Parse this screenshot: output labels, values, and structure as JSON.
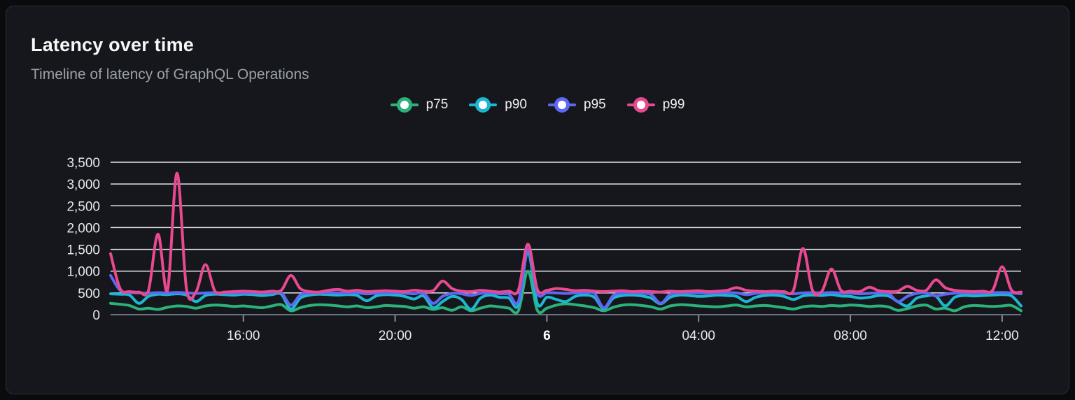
{
  "card": {
    "title": "Latency over time",
    "subtitle": "Timeline of latency of GraphQL Operations"
  },
  "colors": {
    "background": "#15171c",
    "page_background": "#0a0b0d",
    "card_border": "#2c2f36",
    "gridline": "#e3e6ea",
    "axis_line": "#878d97",
    "axis_text": "#e7e9ec"
  },
  "chart_data": {
    "type": "line",
    "title": "Latency over time",
    "subtitle": "Timeline of latency of GraphQL Operations",
    "x_axis": {
      "kind": "time",
      "start_label": "12:30",
      "step_minutes": 15,
      "points": 97,
      "ticks": [
        {
          "label": "16:00",
          "index": 14,
          "bold": false
        },
        {
          "label": "20:00",
          "index": 30,
          "bold": false
        },
        {
          "label": "6",
          "index": 46,
          "bold": true
        },
        {
          "label": "04:00",
          "index": 62,
          "bold": false
        },
        {
          "label": "08:00",
          "index": 78,
          "bold": false
        },
        {
          "label": "12:00",
          "index": 94,
          "bold": false
        }
      ]
    },
    "y_axis": {
      "min": 0,
      "max": 3500,
      "tick_step": 500,
      "tick_labels": [
        "0",
        "500",
        "1,000",
        "1,500",
        "2,000",
        "2,500",
        "3,000",
        "3,500"
      ]
    },
    "grid": "horizontal",
    "legend_position": "top-center",
    "series": [
      {
        "name": "p75",
        "color": "#2bb179",
        "values": [
          260,
          240,
          210,
          130,
          150,
          120,
          170,
          200,
          190,
          150,
          200,
          220,
          210,
          190,
          200,
          180,
          160,
          200,
          230,
          90,
          160,
          210,
          230,
          220,
          200,
          180,
          200,
          160,
          180,
          210,
          200,
          190,
          150,
          180,
          120,
          160,
          100,
          180,
          90,
          150,
          200,
          180,
          150,
          90,
          1000,
          100,
          150,
          220,
          250,
          230,
          200,
          160,
          90,
          170,
          220,
          230,
          210,
          180,
          130,
          200,
          230,
          220,
          200,
          190,
          180,
          200,
          220,
          180,
          200,
          210,
          190,
          160,
          130,
          180,
          200,
          190,
          210,
          200,
          220,
          210,
          190,
          200,
          180,
          100,
          140,
          200,
          220,
          130,
          150,
          90,
          180,
          210,
          200,
          190,
          200,
          210,
          90
        ]
      },
      {
        "name": "p90",
        "color": "#1cb8d2",
        "values": [
          480,
          470,
          450,
          260,
          420,
          470,
          460,
          480,
          450,
          300,
          440,
          470,
          460,
          450,
          470,
          460,
          440,
          460,
          470,
          130,
          380,
          450,
          470,
          460,
          450,
          460,
          440,
          320,
          430,
          460,
          450,
          420,
          360,
          430,
          160,
          300,
          420,
          350,
          120,
          380,
          450,
          400,
          380,
          220,
          1450,
          250,
          400,
          350,
          300,
          420,
          450,
          400,
          140,
          380,
          440,
          450,
          430,
          380,
          250,
          400,
          450,
          440,
          420,
          430,
          450,
          440,
          420,
          300,
          400,
          440,
          450,
          420,
          350,
          430,
          450,
          440,
          460,
          430,
          420,
          380,
          400,
          440,
          430,
          300,
          200,
          380,
          430,
          430,
          200,
          400,
          440,
          430,
          440,
          450,
          460,
          430,
          200
        ]
      },
      {
        "name": "p95",
        "color": "#5f68f2",
        "values": [
          900,
          560,
          510,
          500,
          495,
          505,
          500,
          510,
          500,
          490,
          500,
          505,
          500,
          495,
          500,
          505,
          495,
          500,
          505,
          220,
          450,
          495,
          500,
          505,
          500,
          495,
          500,
          480,
          495,
          500,
          505,
          495,
          480,
          495,
          260,
          420,
          490,
          480,
          440,
          490,
          500,
          480,
          470,
          300,
          1500,
          490,
          505,
          500,
          490,
          500,
          505,
          490,
          160,
          440,
          495,
          500,
          495,
          460,
          260,
          470,
          500,
          505,
          500,
          495,
          500,
          505,
          500,
          460,
          490,
          500,
          505,
          495,
          480,
          500,
          505,
          500,
          510,
          500,
          495,
          480,
          490,
          500,
          495,
          300,
          420,
          490,
          500,
          430,
          470,
          495,
          500,
          495,
          500,
          505,
          510,
          500,
          480
        ]
      },
      {
        "name": "p99",
        "color": "#e8498f",
        "values": [
          1400,
          600,
          530,
          520,
          560,
          1850,
          560,
          3250,
          600,
          520,
          1150,
          540,
          520,
          530,
          540,
          530,
          520,
          540,
          560,
          900,
          600,
          530,
          520,
          560,
          580,
          540,
          560,
          530,
          540,
          550,
          540,
          530,
          560,
          540,
          550,
          770,
          600,
          540,
          530,
          560,
          540,
          520,
          540,
          560,
          1620,
          580,
          560,
          600,
          580,
          550,
          560,
          540,
          530,
          540,
          550,
          530,
          540,
          530,
          520,
          540,
          530,
          540,
          550,
          530,
          540,
          560,
          620,
          560,
          540,
          530,
          540,
          530,
          560,
          1520,
          560,
          540,
          1050,
          560,
          540,
          530,
          630,
          550,
          530,
          540,
          650,
          560,
          560,
          800,
          620,
          560,
          540,
          530,
          540,
          560,
          1100,
          560,
          520
        ]
      }
    ]
  }
}
